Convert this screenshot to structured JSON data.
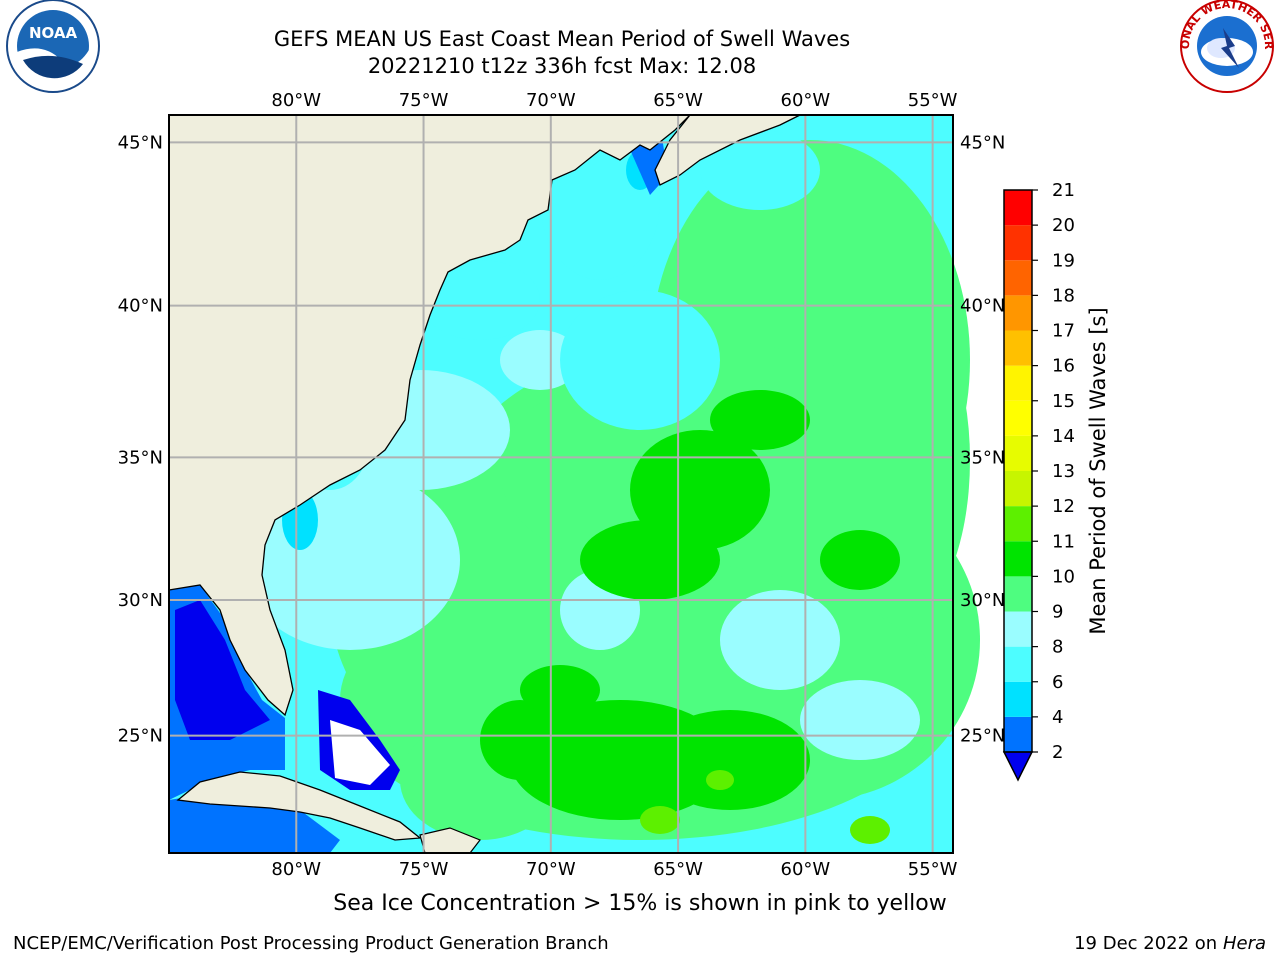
{
  "title_line1": "GEFS MEAN US East Coast Mean Period of Swell Waves",
  "title_line2": "20221210 t12z 336h fcst   Max: 12.08",
  "footer_note": "Sea Ice Concentration > 15% is shown in pink to yellow",
  "footer_left": "NCEP/EMC/Verification Post Processing Product Generation Branch",
  "footer_date": "19 Dec 2022 on",
  "footer_machine": "Hera",
  "logos": {
    "left": "NOAA",
    "right": "NATIONAL WEATHER SERVICE"
  },
  "map": {
    "lon_range": [
      -85,
      -54.2
    ],
    "lat_range": [
      20.5,
      45.8
    ],
    "lon_ticks": [
      {
        "lon": -80,
        "label": "80°W"
      },
      {
        "lon": -75,
        "label": "75°W"
      },
      {
        "lon": -70,
        "label": "70°W"
      },
      {
        "lon": -65,
        "label": "65°W"
      },
      {
        "lon": -60,
        "label": "60°W"
      },
      {
        "lon": -55,
        "label": "55°W"
      }
    ],
    "lat_ticks": [
      {
        "lat": 45,
        "label": "45°N"
      },
      {
        "lat": 40,
        "label": "40°N"
      },
      {
        "lat": 35,
        "label": "35°N"
      },
      {
        "lat": 30,
        "label": "30°N"
      },
      {
        "lat": 25,
        "label": "25°N"
      }
    ],
    "grid_color": "#b0b0b0",
    "land_color": "#efeedd"
  },
  "colorbar": {
    "label": "Mean Period of Swell Waves [s]",
    "levels": [
      2,
      4,
      6,
      8,
      9,
      10,
      11,
      12,
      13,
      14,
      15,
      16,
      17,
      18,
      19,
      20,
      21
    ],
    "colors": [
      "#0073ff",
      "#00e1ff",
      "#4dfdff",
      "#9afdff",
      "#4efd80",
      "#00e400",
      "#5df000",
      "#c7f500",
      "#e7fc00",
      "#ffff00",
      "#fff400",
      "#ffc000",
      "#ff9600",
      "#ff6400",
      "#ff3200",
      "#ff0000"
    ],
    "under_color": "#0000ee"
  }
}
